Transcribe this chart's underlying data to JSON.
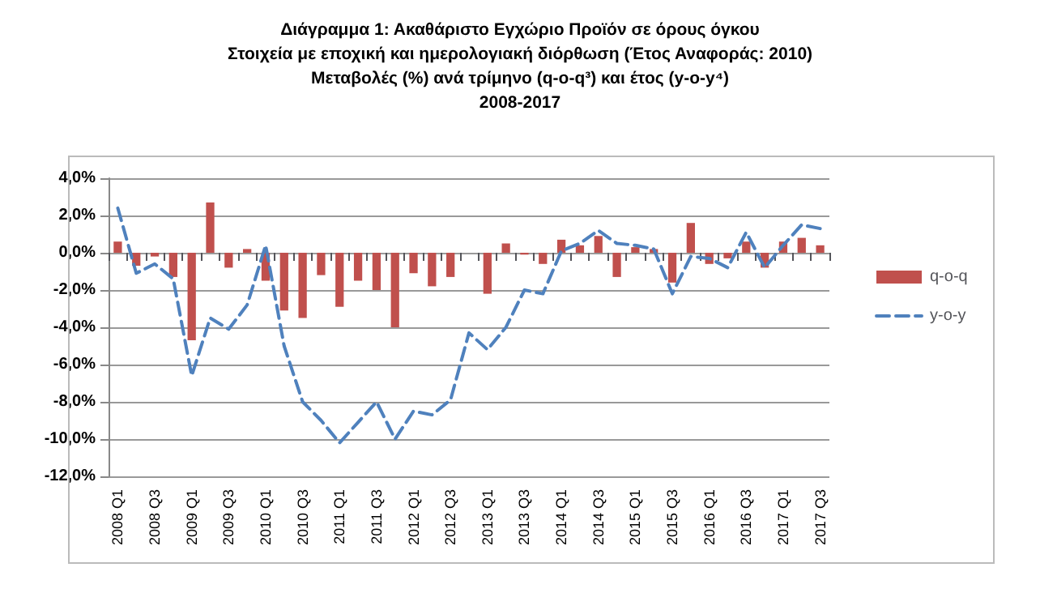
{
  "chart_data": {
    "type": "bar",
    "title": "Διάγραμμα 1: Ακαθάριστο Εγχώριο Προϊόν σε όρους όγκου\nΣτοιχεία με εποχική και ημερολογιακή διόρθωση (Έτος Αναφοράς: 2010)\nΜεταβολές (%) ανά τρίμηνο (q-o-q³) και έτος (y-o-y⁴)\n2008-2017",
    "categories": [
      "2008 Q1",
      null,
      "2008 Q3",
      null,
      "2009 Q1",
      null,
      "2009 Q3",
      null,
      "2010 Q1",
      null,
      "2010 Q3",
      null,
      "2011 Q1",
      null,
      "2011 Q3",
      null,
      "2012 Q1",
      null,
      "2012 Q3",
      null,
      "2013 Q1",
      null,
      "2013 Q3",
      null,
      "2014 Q1",
      null,
      "2014 Q3",
      null,
      "2015 Q1",
      null,
      "2015 Q3",
      null,
      "2016 Q1",
      null,
      "2016 Q3",
      null,
      "2017 Q1",
      null,
      "2017 Q3"
    ],
    "series": [
      {
        "name": "q-o-q",
        "color": "#c0504d",
        "values": [
          0.6,
          -0.7,
          -0.2,
          -1.3,
          -4.7,
          2.7,
          -0.8,
          0.2,
          -1.5,
          -3.1,
          -3.5,
          -1.2,
          -2.9,
          -1.5,
          -2.0,
          -4.0,
          -1.1,
          -1.8,
          -1.3,
          0.0,
          -2.2,
          0.5,
          -0.1,
          -0.6,
          0.7,
          0.4,
          0.9,
          -1.3,
          0.3,
          0.2,
          -1.6,
          1.6,
          -0.6,
          -0.3,
          0.6,
          -0.8,
          0.6,
          0.8,
          0.4
        ]
      },
      {
        "name": "y-o-y",
        "type": "line",
        "color": "#4f81bd",
        "line_style": "dashed",
        "marker": "none",
        "values": [
          2.4,
          -1.1,
          -0.6,
          -1.4,
          -6.6,
          -3.5,
          -4.1,
          -2.8,
          0.4,
          -5.0,
          -8.0,
          -9.0,
          -10.2,
          -9.1,
          -8.0,
          -10.0,
          -8.5,
          -8.7,
          -7.9,
          -4.3,
          -5.2,
          -4.0,
          -2.0,
          -2.2,
          0.1,
          0.5,
          1.2,
          0.5,
          0.4,
          0.2,
          -2.2,
          -0.2,
          -0.3,
          -0.8,
          1.1,
          -0.8,
          0.4,
          1.5,
          1.3
        ]
      }
    ],
    "ylim": [
      -12,
      4
    ],
    "yticks": [
      {
        "value": -12,
        "label": "-12,0%"
      },
      {
        "value": -10,
        "label": "-10,0%"
      },
      {
        "value": -8,
        "label": "-8,0%"
      },
      {
        "value": -6,
        "label": "-6,0%"
      },
      {
        "value": -4,
        "label": "-4,0%"
      },
      {
        "value": -2,
        "label": "-2,0%"
      },
      {
        "value": 0,
        "label": "0,0%"
      },
      {
        "value": 2,
        "label": "2,0%"
      },
      {
        "value": 4,
        "label": "4,0%"
      }
    ],
    "grid": "y",
    "legend": "right"
  }
}
